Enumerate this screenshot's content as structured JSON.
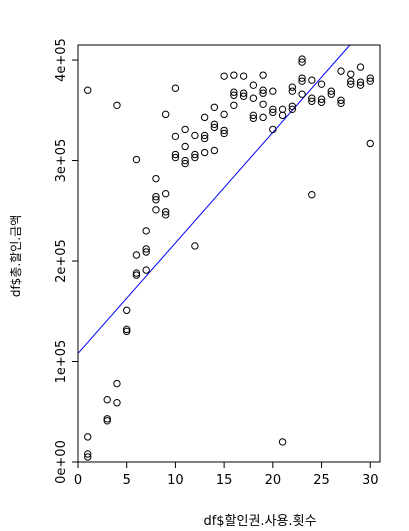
{
  "chart_data": {
    "type": "scatter",
    "xlabel": "df$할인권.사용.횟수",
    "ylabel": "df$총.할인.금액",
    "xlim": [
      0,
      31
    ],
    "ylim": [
      0,
      415000
    ],
    "x_ticks": [
      0,
      5,
      10,
      15,
      20,
      25,
      30
    ],
    "x_tick_labels": [
      "0",
      "5",
      "10",
      "15",
      "20",
      "25",
      "30"
    ],
    "y_ticks": [
      0,
      100000,
      200000,
      300000,
      400000
    ],
    "y_tick_labels": [
      "0e+00",
      "1e+05",
      "2e+05",
      "3e+05",
      "4e+05"
    ],
    "grid": false,
    "legend": "none",
    "point_color": "#000000",
    "line_color": "#0000ff",
    "regression_line": {
      "intercept": 108000,
      "slope": 11000
    },
    "points": [
      {
        "x": 1,
        "y": 25000
      },
      {
        "x": 1,
        "y": 8000
      },
      {
        "x": 1,
        "y": 5000
      },
      {
        "x": 1,
        "y": 370000
      },
      {
        "x": 3,
        "y": 62000
      },
      {
        "x": 3,
        "y": 43000
      },
      {
        "x": 3,
        "y": 41000
      },
      {
        "x": 4,
        "y": 78000
      },
      {
        "x": 4,
        "y": 59000
      },
      {
        "x": 4,
        "y": 355000
      },
      {
        "x": 5,
        "y": 151000
      },
      {
        "x": 5,
        "y": 132000
      },
      {
        "x": 5,
        "y": 130000
      },
      {
        "x": 6,
        "y": 206000
      },
      {
        "x": 6,
        "y": 188000
      },
      {
        "x": 6,
        "y": 186000
      },
      {
        "x": 6,
        "y": 301000
      },
      {
        "x": 7,
        "y": 230000
      },
      {
        "x": 7,
        "y": 212000
      },
      {
        "x": 7,
        "y": 209000
      },
      {
        "x": 7,
        "y": 191000
      },
      {
        "x": 8,
        "y": 282000
      },
      {
        "x": 8,
        "y": 264000
      },
      {
        "x": 8,
        "y": 261000
      },
      {
        "x": 8,
        "y": 251000
      },
      {
        "x": 9,
        "y": 267000
      },
      {
        "x": 9,
        "y": 249000
      },
      {
        "x": 9,
        "y": 246000
      },
      {
        "x": 9,
        "y": 346000
      },
      {
        "x": 10,
        "y": 324000
      },
      {
        "x": 10,
        "y": 306000
      },
      {
        "x": 10,
        "y": 303000
      },
      {
        "x": 10,
        "y": 372000
      },
      {
        "x": 11,
        "y": 331000
      },
      {
        "x": 11,
        "y": 314000
      },
      {
        "x": 11,
        "y": 300000
      },
      {
        "x": 11,
        "y": 297000
      },
      {
        "x": 12,
        "y": 325000
      },
      {
        "x": 12,
        "y": 306000
      },
      {
        "x": 12,
        "y": 303000
      },
      {
        "x": 12,
        "y": 215000
      },
      {
        "x": 13,
        "y": 343000
      },
      {
        "x": 13,
        "y": 325000
      },
      {
        "x": 13,
        "y": 322000
      },
      {
        "x": 13,
        "y": 308000
      },
      {
        "x": 14,
        "y": 353000
      },
      {
        "x": 14,
        "y": 336000
      },
      {
        "x": 14,
        "y": 333000
      },
      {
        "x": 14,
        "y": 310000
      },
      {
        "x": 15,
        "y": 384000
      },
      {
        "x": 15,
        "y": 346000
      },
      {
        "x": 15,
        "y": 330000
      },
      {
        "x": 15,
        "y": 327000
      },
      {
        "x": 16,
        "y": 385000
      },
      {
        "x": 16,
        "y": 368000
      },
      {
        "x": 16,
        "y": 365000
      },
      {
        "x": 16,
        "y": 355000
      },
      {
        "x": 17,
        "y": 384000
      },
      {
        "x": 17,
        "y": 367000
      },
      {
        "x": 17,
        "y": 364000
      },
      {
        "x": 18,
        "y": 375000
      },
      {
        "x": 18,
        "y": 345000
      },
      {
        "x": 18,
        "y": 342000
      },
      {
        "x": 18,
        "y": 362000
      },
      {
        "x": 19,
        "y": 385000
      },
      {
        "x": 19,
        "y": 370000
      },
      {
        "x": 19,
        "y": 367000
      },
      {
        "x": 19,
        "y": 356000
      },
      {
        "x": 19,
        "y": 343000
      },
      {
        "x": 20,
        "y": 369000
      },
      {
        "x": 20,
        "y": 351000
      },
      {
        "x": 20,
        "y": 348000
      },
      {
        "x": 20,
        "y": 331000
      },
      {
        "x": 21,
        "y": 351000
      },
      {
        "x": 21,
        "y": 345000
      },
      {
        "x": 21,
        "y": 20000
      },
      {
        "x": 22,
        "y": 373000
      },
      {
        "x": 22,
        "y": 354000
      },
      {
        "x": 22,
        "y": 351000
      },
      {
        "x": 22,
        "y": 369000
      },
      {
        "x": 23,
        "y": 401000
      },
      {
        "x": 23,
        "y": 398000
      },
      {
        "x": 23,
        "y": 382000
      },
      {
        "x": 23,
        "y": 379000
      },
      {
        "x": 23,
        "y": 366000
      },
      {
        "x": 24,
        "y": 380000
      },
      {
        "x": 24,
        "y": 362000
      },
      {
        "x": 24,
        "y": 359000
      },
      {
        "x": 24,
        "y": 266000
      },
      {
        "x": 25,
        "y": 376000
      },
      {
        "x": 25,
        "y": 361000
      },
      {
        "x": 25,
        "y": 358000
      },
      {
        "x": 26,
        "y": 369000
      },
      {
        "x": 26,
        "y": 366000
      },
      {
        "x": 27,
        "y": 389000
      },
      {
        "x": 27,
        "y": 360000
      },
      {
        "x": 27,
        "y": 357000
      },
      {
        "x": 28,
        "y": 386000
      },
      {
        "x": 28,
        "y": 379000
      },
      {
        "x": 28,
        "y": 376000
      },
      {
        "x": 29,
        "y": 393000
      },
      {
        "x": 29,
        "y": 378000
      },
      {
        "x": 29,
        "y": 375000
      },
      {
        "x": 30,
        "y": 382000
      },
      {
        "x": 30,
        "y": 379000
      },
      {
        "x": 30,
        "y": 317000
      }
    ]
  }
}
